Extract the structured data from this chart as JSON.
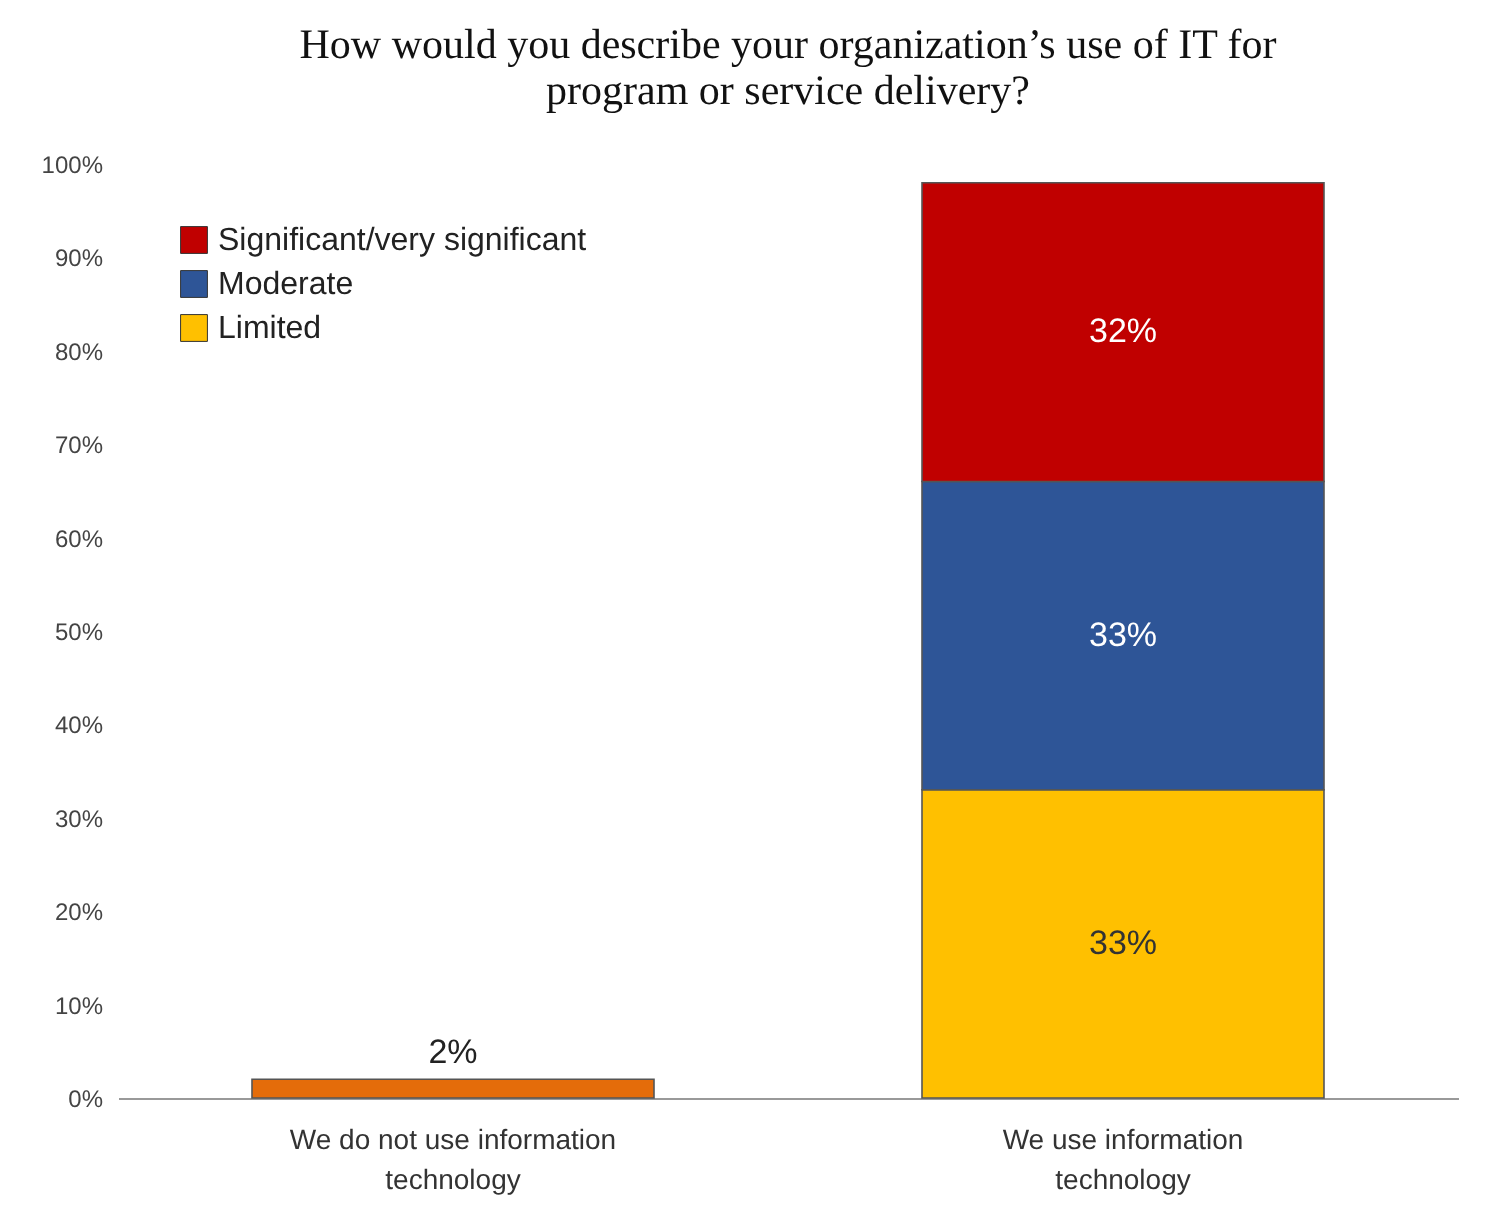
{
  "chart_data": {
    "type": "bar",
    "title": "How would you describe your organization’s use of IT for program or service delivery?",
    "categories": [
      "We do not use information technology",
      "We use information technology"
    ],
    "stacked": true,
    "series": [
      {
        "color": "#e46c0a",
        "values": [
          2,
          null
        ],
        "value_labels": [
          "2%",
          null
        ]
      },
      {
        "name": "Limited",
        "color": "#ffc000",
        "values": [
          null,
          33
        ],
        "value_labels": [
          null,
          "33%"
        ]
      },
      {
        "name": "Moderate",
        "color": "#2e5597",
        "values": [
          null,
          33
        ],
        "value_labels": [
          null,
          "33%"
        ]
      },
      {
        "name": "Significant/very significant",
        "color": "#c00000",
        "values": [
          null,
          32
        ],
        "value_labels": [
          null,
          "32%"
        ]
      }
    ],
    "ylim": [
      0,
      100
    ],
    "yticks": [
      {
        "value": 0,
        "label": "0%"
      },
      {
        "value": 10,
        "label": "10%"
      },
      {
        "value": 20,
        "label": "20%"
      },
      {
        "value": 30,
        "label": "30%"
      },
      {
        "value": 40,
        "label": "40%"
      },
      {
        "value": 50,
        "label": "50%"
      },
      {
        "value": 60,
        "label": "60%"
      },
      {
        "value": 70,
        "label": "70%"
      },
      {
        "value": 80,
        "label": "80%"
      },
      {
        "value": 90,
        "label": "90%"
      },
      {
        "value": 100,
        "label": "100%"
      }
    ],
    "legend": "top left",
    "grid": false
  }
}
